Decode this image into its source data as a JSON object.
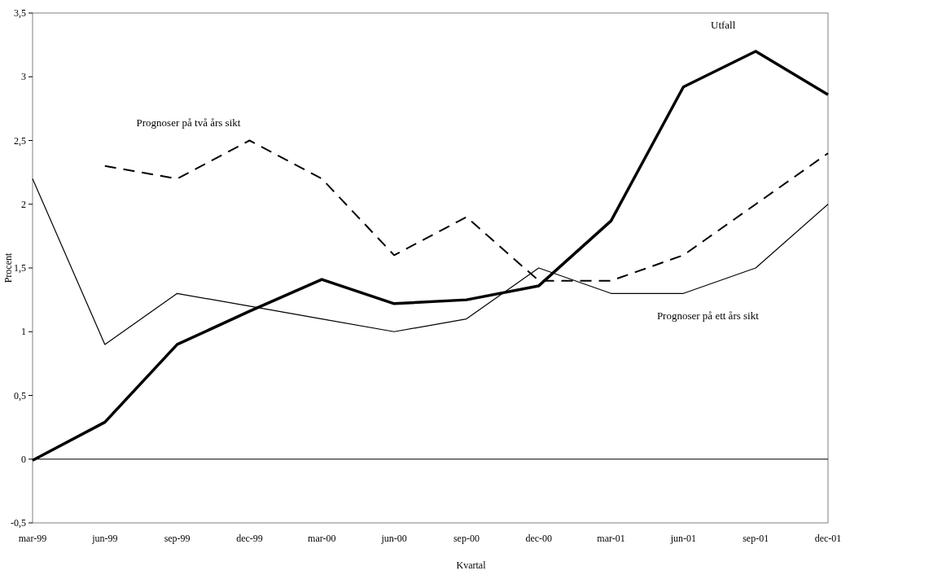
{
  "chart_data": {
    "type": "line",
    "xlabel": "Kvartal",
    "ylabel": "Procent",
    "categories": [
      "mar-99",
      "jun-99",
      "sep-99",
      "dec-99",
      "mar-00",
      "jun-00",
      "sep-00",
      "dec-00",
      "mar-01",
      "jun-01",
      "sep-01",
      "dec-01"
    ],
    "series": [
      {
        "name": "Utfall",
        "color": "#000000",
        "line_style": "solid",
        "values": [
          -0.01,
          0.29,
          0.9,
          1.16,
          1.41,
          1.22,
          1.25,
          1.36,
          1.87,
          2.92,
          3.2,
          2.86
        ]
      },
      {
        "name": "Prognoser på två års sikt",
        "color": "#000000",
        "line_style": "dashed",
        "values": [
          null,
          2.3,
          2.2,
          2.5,
          2.2,
          1.6,
          1.9,
          1.4,
          1.4,
          1.6,
          2.0,
          2.4
        ]
      },
      {
        "name": "Prognoser på ett års sikt",
        "color": "#000000",
        "line_style": "solid",
        "values": [
          2.2,
          0.9,
          1.3,
          1.2,
          1.1,
          1.0,
          1.1,
          1.5,
          1.3,
          1.3,
          1.5,
          2.0
        ]
      }
    ],
    "ylim": [
      -0.5,
      3.5
    ],
    "yticks": [
      {
        "value": -0.5,
        "label": "-0,5"
      },
      0,
      {
        "value": 0.5,
        "label": "0,5"
      },
      1,
      {
        "value": 1.5,
        "label": "1,5"
      },
      2,
      {
        "value": 2.5,
        "label": "2,5"
      },
      3,
      {
        "value": 3.5,
        "label": "3,5"
      }
    ],
    "marker": "none"
  }
}
